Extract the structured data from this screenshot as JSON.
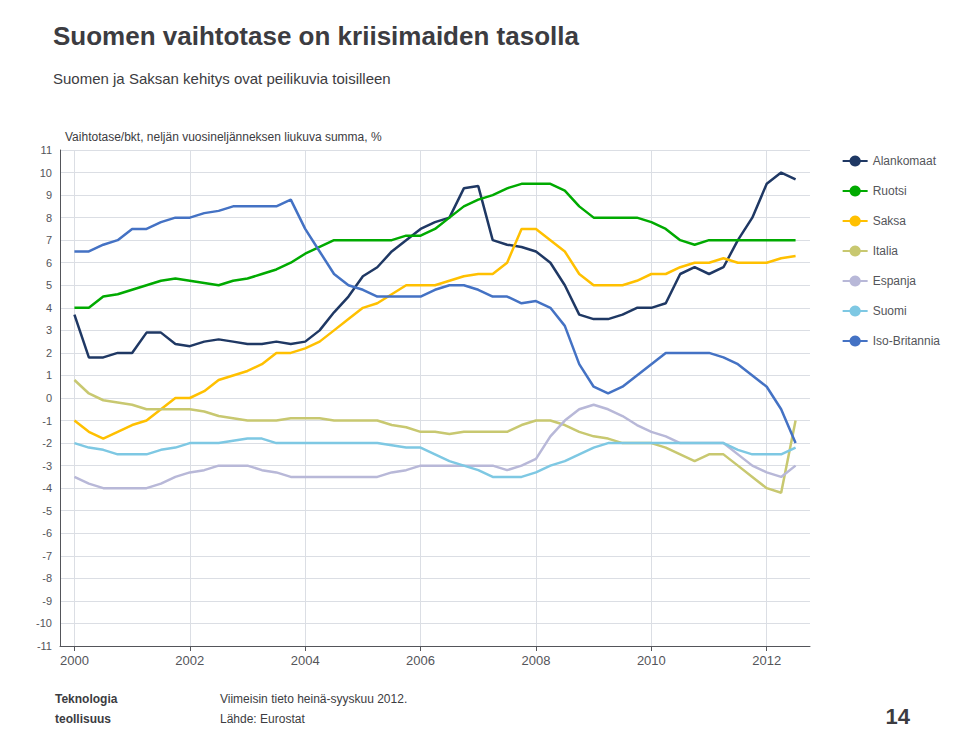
{
  "chart_data": {
    "type": "line",
    "title": "Suomen vaihtotase on kriisimaiden tasolla",
    "subtitle": "Suomen ja Saksan kehitys ovat peilikuvia toisilleen",
    "y_label": "Vaihtotase/bkt, neljän vuosineljänneksen liukuva summa, %",
    "annotations": [
      "Viimeisin tieto heinä-syyskuu 2012.",
      "Lähde: Eurostat",
      "14",
      "Teknologia",
      "teollisuus"
    ],
    "x": [
      2000.0,
      2000.25,
      2000.5,
      2000.75,
      2001.0,
      2001.25,
      2001.5,
      2001.75,
      2002.0,
      2002.25,
      2002.5,
      2002.75,
      2003.0,
      2003.25,
      2003.5,
      2003.75,
      2004.0,
      2004.25,
      2004.5,
      2004.75,
      2005.0,
      2005.25,
      2005.5,
      2005.75,
      2006.0,
      2006.25,
      2006.5,
      2006.75,
      2007.0,
      2007.25,
      2007.5,
      2007.75,
      2008.0,
      2008.25,
      2008.5,
      2008.75,
      2009.0,
      2009.25,
      2009.5,
      2009.75,
      2010.0,
      2010.25,
      2010.5,
      2010.75,
      2011.0,
      2011.25,
      2011.5,
      2011.75,
      2012.0,
      2012.25,
      2012.5
    ],
    "series": [
      {
        "name": "Alankomaat",
        "color": "#1F3864",
        "values": [
          3.7,
          1.8,
          1.8,
          2.0,
          2.0,
          2.9,
          2.9,
          2.4,
          2.3,
          2.5,
          2.6,
          2.5,
          2.4,
          2.4,
          2.5,
          2.4,
          2.5,
          3.0,
          3.8,
          4.5,
          5.4,
          5.8,
          6.5,
          7.0,
          7.5,
          7.8,
          8.0,
          9.3,
          9.4,
          7.0,
          6.8,
          6.7,
          6.5,
          6.0,
          5.0,
          3.7,
          3.5,
          3.5,
          3.7,
          4.0,
          4.0,
          4.2,
          5.5,
          5.8,
          5.5,
          5.8,
          7.0,
          8.0,
          9.5,
          10.0,
          9.7
        ]
      },
      {
        "name": "Ruotsi",
        "color": "#00AA00",
        "values": [
          4.0,
          4.0,
          4.5,
          4.6,
          4.8,
          5.0,
          5.2,
          5.3,
          5.2,
          5.1,
          5.0,
          5.2,
          5.3,
          5.5,
          5.7,
          6.0,
          6.4,
          6.7,
          7.0,
          7.0,
          7.0,
          7.0,
          7.0,
          7.2,
          7.2,
          7.5,
          8.0,
          8.5,
          8.8,
          9.0,
          9.3,
          9.5,
          9.5,
          9.5,
          9.2,
          8.5,
          8.0,
          8.0,
          8.0,
          8.0,
          7.8,
          7.5,
          7.0,
          6.8,
          7.0,
          7.0,
          7.0,
          7.0,
          7.0,
          7.0,
          7.0
        ]
      },
      {
        "name": "Saksa",
        "color": "#FFC000",
        "values": [
          -1.0,
          -1.5,
          -1.8,
          -1.5,
          -1.2,
          -1.0,
          -0.5,
          0.0,
          0.0,
          0.3,
          0.8,
          1.0,
          1.2,
          1.5,
          2.0,
          2.0,
          2.2,
          2.5,
          3.0,
          3.5,
          4.0,
          4.2,
          4.6,
          5.0,
          5.0,
          5.0,
          5.2,
          5.4,
          5.5,
          5.5,
          6.0,
          7.5,
          7.5,
          7.0,
          6.5,
          5.5,
          5.0,
          5.0,
          5.0,
          5.2,
          5.5,
          5.5,
          5.8,
          6.0,
          6.0,
          6.2,
          6.0,
          6.0,
          6.0,
          6.2,
          6.3
        ]
      },
      {
        "name": "Italia",
        "color": "#C8C870",
        "values": [
          0.8,
          0.2,
          -0.1,
          -0.2,
          -0.3,
          -0.5,
          -0.5,
          -0.5,
          -0.5,
          -0.6,
          -0.8,
          -0.9,
          -1.0,
          -1.0,
          -1.0,
          -0.9,
          -0.9,
          -0.9,
          -1.0,
          -1.0,
          -1.0,
          -1.0,
          -1.2,
          -1.3,
          -1.5,
          -1.5,
          -1.6,
          -1.5,
          -1.5,
          -1.5,
          -1.5,
          -1.2,
          -1.0,
          -1.0,
          -1.2,
          -1.5,
          -1.7,
          -1.8,
          -2.0,
          -2.0,
          -2.0,
          -2.2,
          -2.5,
          -2.8,
          -2.5,
          -2.5,
          -3.0,
          -3.5,
          -4.0,
          -4.2,
          -1.0
        ]
      },
      {
        "name": "Espanja",
        "color": "#B8B8D8",
        "values": [
          -3.5,
          -3.8,
          -4.0,
          -4.0,
          -4.0,
          -4.0,
          -3.8,
          -3.5,
          -3.3,
          -3.2,
          -3.0,
          -3.0,
          -3.0,
          -3.2,
          -3.3,
          -3.5,
          -3.5,
          -3.5,
          -3.5,
          -3.5,
          -3.5,
          -3.5,
          -3.3,
          -3.2,
          -3.0,
          -3.0,
          -3.0,
          -3.0,
          -3.0,
          -3.0,
          -3.2,
          -3.0,
          -2.7,
          -1.7,
          -1.0,
          -0.5,
          -0.3,
          -0.5,
          -0.8,
          -1.2,
          -1.5,
          -1.7,
          -2.0,
          -2.0,
          -2.0,
          -2.0,
          -2.5,
          -3.0,
          -3.3,
          -3.5,
          -3.0
        ]
      },
      {
        "name": "Suomi",
        "color": "#7EC8E3",
        "values": [
          -2.0,
          -2.2,
          -2.3,
          -2.5,
          -2.5,
          -2.5,
          -2.3,
          -2.2,
          -2.0,
          -2.0,
          -2.0,
          -1.9,
          -1.8,
          -1.8,
          -2.0,
          -2.0,
          -2.0,
          -2.0,
          -2.0,
          -2.0,
          -2.0,
          -2.0,
          -2.1,
          -2.2,
          -2.2,
          -2.5,
          -2.8,
          -3.0,
          -3.2,
          -3.5,
          -3.5,
          -3.5,
          -3.3,
          -3.0,
          -2.8,
          -2.5,
          -2.2,
          -2.0,
          -2.0,
          -2.0,
          -2.0,
          -2.0,
          -2.0,
          -2.0,
          -2.0,
          -2.0,
          -2.3,
          -2.5,
          -2.5,
          -2.5,
          -2.2
        ]
      },
      {
        "name": "Iso-Britannia",
        "color": "#4472C4",
        "values": [
          6.5,
          6.5,
          6.8,
          7.0,
          7.5,
          7.5,
          7.8,
          8.0,
          8.0,
          8.2,
          8.3,
          8.5,
          8.5,
          8.5,
          8.5,
          8.8,
          7.5,
          6.5,
          5.5,
          5.0,
          4.8,
          4.5,
          4.5,
          4.5,
          4.5,
          4.8,
          5.0,
          5.0,
          4.8,
          4.5,
          4.5,
          4.2,
          4.3,
          4.0,
          3.2,
          1.5,
          0.5,
          0.2,
          0.5,
          1.0,
          1.5,
          2.0,
          2.0,
          2.0,
          2.0,
          1.8,
          1.5,
          1.0,
          0.5,
          -0.5,
          -2.0
        ]
      }
    ],
    "xlim": [
      1999.75,
      2012.75
    ],
    "ylim": [
      -11,
      11
    ],
    "xticks": [
      2000,
      2002,
      2004,
      2006,
      2008,
      2010,
      2012
    ],
    "yticks": [
      -11,
      -10,
      -9,
      -8,
      -7,
      -6,
      -5,
      -4,
      -3,
      -2,
      -1,
      0,
      1,
      2,
      3,
      4,
      5,
      6,
      7,
      8,
      9,
      10,
      11
    ],
    "grid": true,
    "legend": "right"
  }
}
